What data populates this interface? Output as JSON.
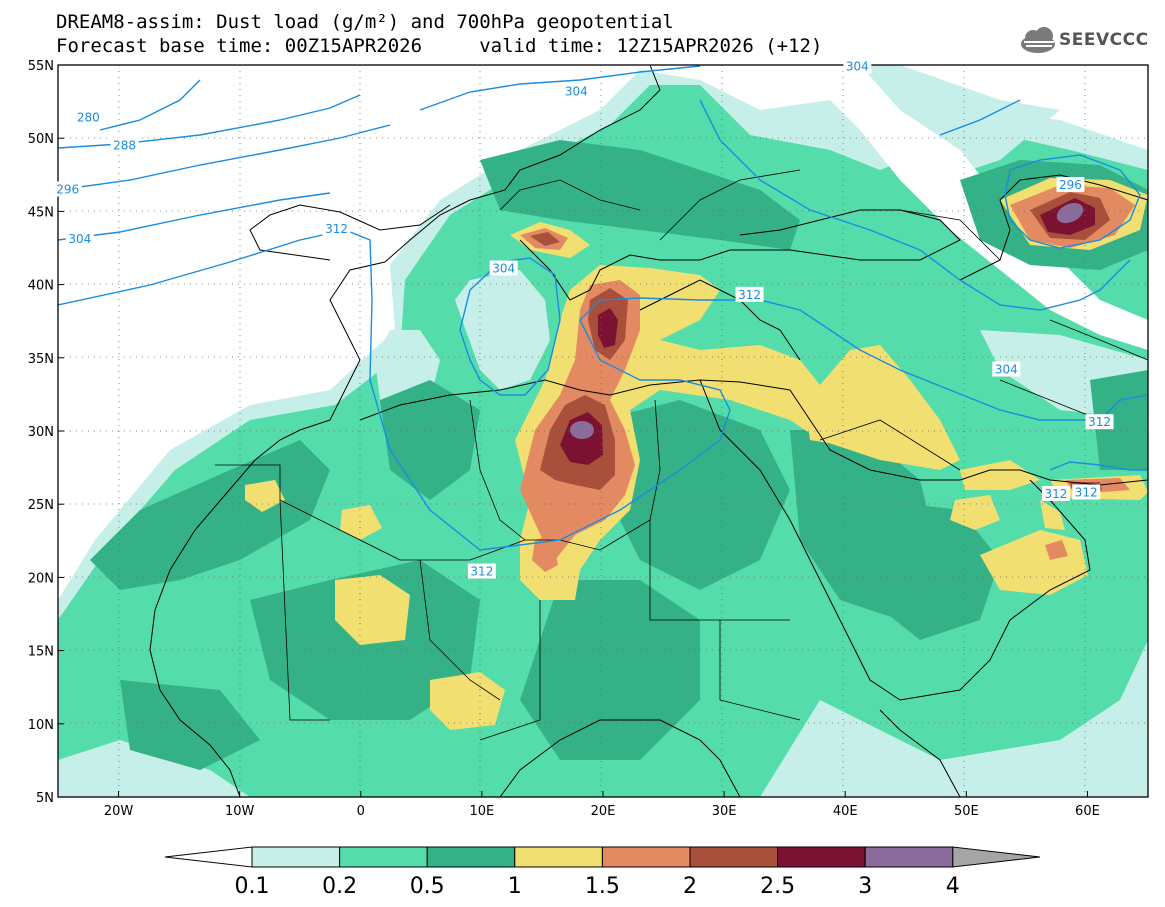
{
  "header": {
    "line1": "DREAM8-assim: Dust load (g/m²) and 700hPa geopotential",
    "line2": "Forecast base time: 00Z15APR2026     valid time: 12Z15APR2026 (+12)",
    "logo": "SEEVCCC"
  },
  "map": {
    "lon_range": [
      -25,
      65
    ],
    "lat_range": [
      5,
      55
    ],
    "lat_ticks": [
      "55N",
      "50N",
      "45N",
      "40N",
      "35N",
      "30N",
      "25N",
      "20N",
      "15N",
      "10N",
      "5N"
    ],
    "lon_ticks": [
      "20W",
      "10W",
      "0",
      "10E",
      "20E",
      "30E",
      "40E",
      "50E",
      "60E"
    ],
    "contour_labels": [
      {
        "text": "280",
        "lon": -22.5,
        "lat": 51.4
      },
      {
        "text": "288",
        "lon": -19.5,
        "lat": 49.5
      },
      {
        "text": "296",
        "lon": -24.2,
        "lat": 46.5
      },
      {
        "text": "304",
        "lon": -23.2,
        "lat": 43.1
      },
      {
        "text": "312",
        "lon": -2.0,
        "lat": 43.8
      },
      {
        "text": "304",
        "lon": 11.8,
        "lat": 41.1
      },
      {
        "text": "304",
        "lon": 17.8,
        "lat": 53.2
      },
      {
        "text": "304",
        "lon": 41.0,
        "lat": 54.9
      },
      {
        "text": "296",
        "lon": 58.6,
        "lat": 46.8
      },
      {
        "text": "312",
        "lon": 32.1,
        "lat": 39.3
      },
      {
        "text": "304",
        "lon": 53.3,
        "lat": 34.2
      },
      {
        "text": "312",
        "lon": 61.0,
        "lat": 30.6
      },
      {
        "text": "312",
        "lon": 57.4,
        "lat": 25.7
      },
      {
        "text": "312",
        "lon": 59.9,
        "lat": 25.8
      },
      {
        "text": "312",
        "lon": 10.0,
        "lat": 20.4
      }
    ]
  },
  "colorbar": {
    "labels": [
      "0.1",
      "0.2",
      "0.5",
      "1",
      "1.5",
      "2",
      "2.5",
      "3",
      "4"
    ],
    "colors": [
      "#c5efe8",
      "#55dcab",
      "#35b188",
      "#f2df72",
      "#e38a62",
      "#a9503d",
      "#7c1232",
      "#8b6c9c",
      "#a5a5a5"
    ]
  },
  "colors": {
    "contour": "#1a8ce0",
    "border": "#000000"
  }
}
